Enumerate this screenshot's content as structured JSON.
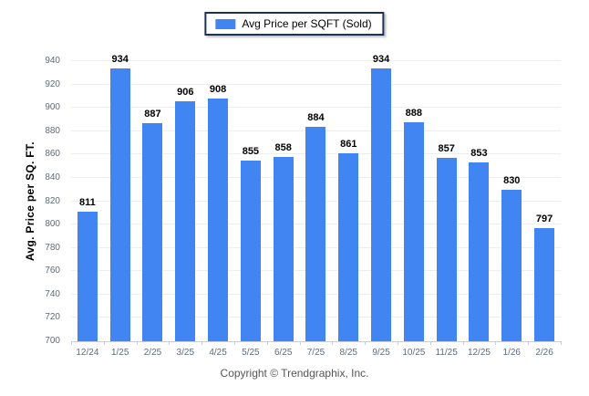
{
  "chart_data": {
    "type": "bar",
    "legend": "Avg Price per SQFT (Sold)",
    "legend_position": "top-center",
    "ylabel": "Avg. Price per SQ. FT.",
    "xlabel": "",
    "categories": [
      "12/24",
      "1/25",
      "2/25",
      "3/25",
      "4/25",
      "5/25",
      "6/25",
      "7/25",
      "8/25",
      "9/25",
      "10/25",
      "11/25",
      "12/25",
      "1/26",
      "2/26"
    ],
    "values": [
      811,
      934,
      887,
      906,
      908,
      855,
      858,
      884,
      861,
      934,
      888,
      857,
      853,
      830,
      797
    ],
    "ylim": [
      700,
      940
    ],
    "ytick_step": 20,
    "grid": "horizontal",
    "bar_color": "#4185f2"
  },
  "footer": {
    "copyright": "Copyright © Trendgraphix, Inc."
  },
  "colors": {
    "bar": "#4185f2",
    "legend_border": "#1c3257",
    "gridline": "#eceef0",
    "axis_line": "#c9ccd1",
    "tick_text": "#5e6b78",
    "value_text": "#000000",
    "background": "#ffffff"
  }
}
